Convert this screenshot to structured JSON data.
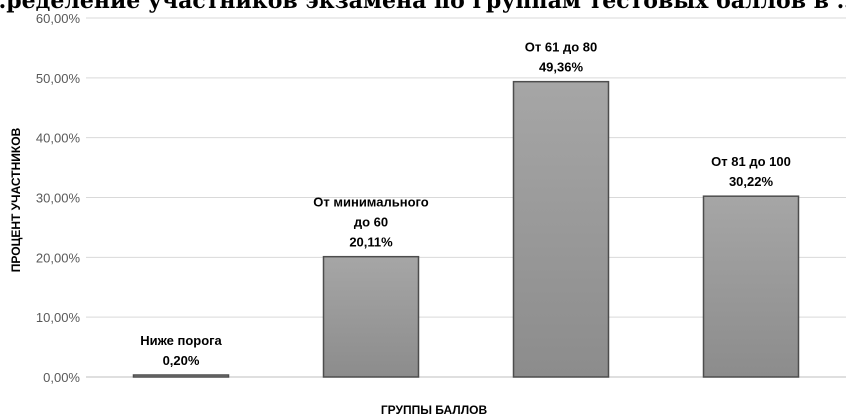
{
  "chart_data": {
    "type": "bar",
    "title": "…ределение участников экзамена по группам тестовых баллов в …дующ…",
    "xlabel": "ГРУППЫ БАЛЛОВ",
    "ylabel": "ПРОЦЕНТ УЧАСТНИКОВ",
    "categories": [
      [
        "Ниже порога"
      ],
      [
        "От минимального",
        "до 60"
      ],
      [
        "От 61 до 80"
      ],
      [
        "От 81 до 100"
      ]
    ],
    "values": [
      0.2,
      20.11,
      49.36,
      30.22
    ],
    "value_labels": [
      "0,20%",
      "20,11%",
      "49,36%",
      "30,22%"
    ],
    "ylim": [
      0,
      60
    ],
    "yticks": [
      0,
      10,
      20,
      30,
      40,
      50,
      60
    ],
    "ytick_labels": [
      "0,00%",
      "10,00%",
      "20,00%",
      "30,00%",
      "40,00%",
      "50,00%",
      "60,00%"
    ],
    "grid": true,
    "legend": "none",
    "colors": {
      "bar_top": "#a6a6a6",
      "bar_bottom": "#8c8c8c",
      "bar_border": "#4d4d4d"
    }
  }
}
